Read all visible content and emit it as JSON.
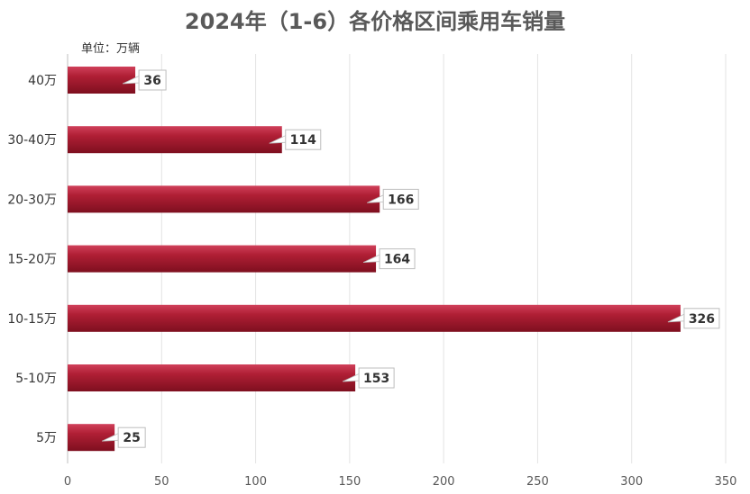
{
  "chart_data": {
    "type": "bar",
    "orientation": "horizontal",
    "title": "2024年（1-6）各价格区间乘用车销量",
    "unit_label": "单位：万辆",
    "categories": [
      "40万",
      "30-40万",
      "20-30万",
      "15-20万",
      "10-15万",
      "5-10万",
      "5万"
    ],
    "values": [
      36,
      114,
      166,
      164,
      326,
      153,
      25
    ],
    "xlim": [
      0,
      350
    ],
    "x_ticks": [
      0,
      50,
      100,
      150,
      200,
      250,
      300,
      350
    ],
    "grid": true,
    "bar_color": "#a8182c",
    "legend": "none"
  }
}
